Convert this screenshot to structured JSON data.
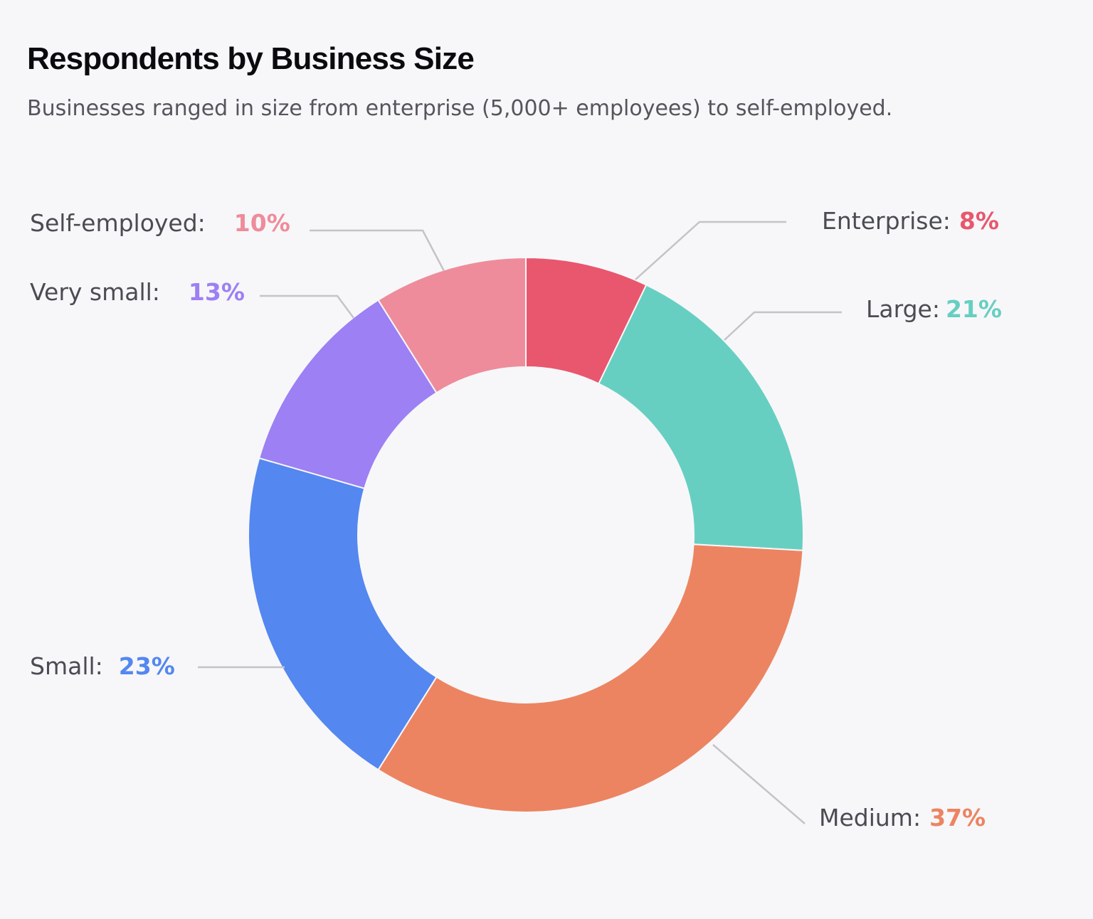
{
  "header": {
    "title": "Respondents by Business Size",
    "subtitle": "Businesses ranged in size from enterprise (5,000+ employees) to self-employed."
  },
  "chart_data": {
    "type": "pie",
    "title": "Respondents by Business Size",
    "subtitle": "Businesses ranged in size from enterprise (5,000+ employees) to self-employed.",
    "donut": true,
    "start": "12 o'clock",
    "direction": "clockwise",
    "slices": [
      {
        "name": "Enterprise",
        "value": 8,
        "label": "8%",
        "color": "#e8576d"
      },
      {
        "name": "Large",
        "value": 21,
        "label": "21%",
        "color": "#67cfc1"
      },
      {
        "name": "Medium",
        "value": 37,
        "label": "37%",
        "color": "#ec8461"
      },
      {
        "name": "Small",
        "value": 23,
        "label": "23%",
        "color": "#5487f0"
      },
      {
        "name": "Very small",
        "value": 13,
        "label": "13%",
        "color": "#9c80f4"
      },
      {
        "name": "Self-employed",
        "value": 10,
        "label": "10%",
        "color": "#ee8c9b"
      }
    ]
  }
}
